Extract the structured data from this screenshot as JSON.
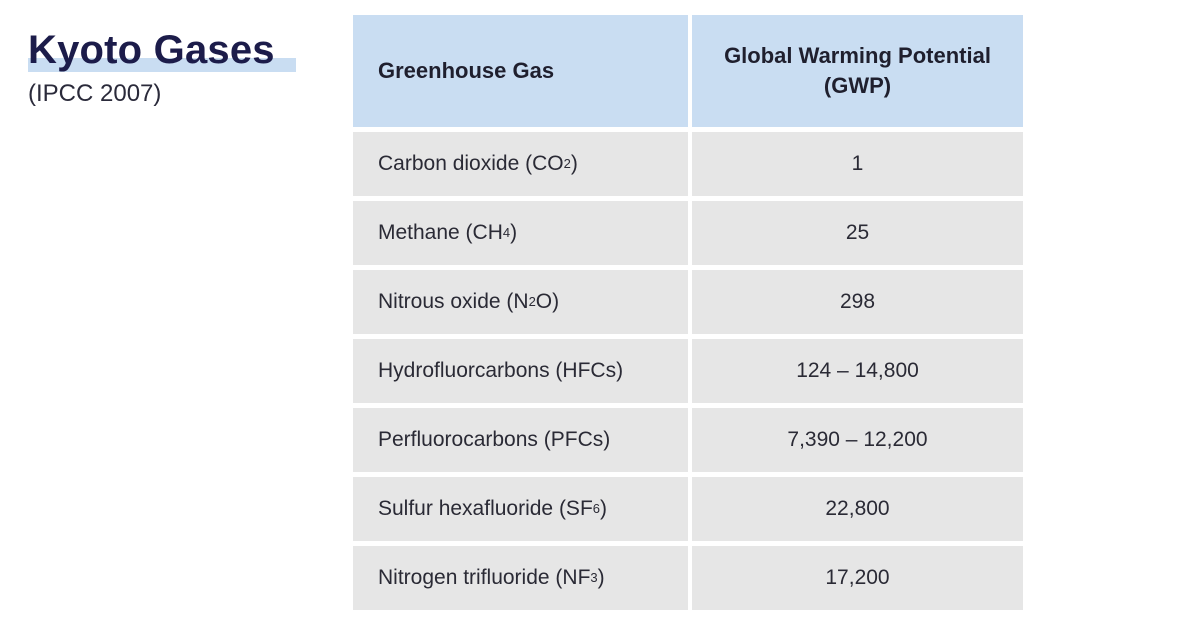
{
  "heading": {
    "title": "Kyoto Gases",
    "subtitle": "(IPCC 2007)",
    "highlight_color": "#c9ddf2"
  },
  "table": {
    "header_color": "#c9ddf2",
    "row_color": "#e6e6e6",
    "columns": [
      "Greenhouse Gas",
      "Global Warming Potential (GWP)"
    ],
    "rows": [
      {
        "gas": "Carbon dioxide (CO",
        "sub": "2",
        "suffix": ")",
        "gwp": "1"
      },
      {
        "gas": "Methane (CH",
        "sub": "4",
        "suffix": ")",
        "gwp": "25"
      },
      {
        "gas": "Nitrous oxide (N",
        "sub": "2",
        "suffix": "O)",
        "gwp": "298"
      },
      {
        "gas": "Hydrofluorcarbons (HFCs)",
        "sub": "",
        "suffix": "",
        "gwp": "124 – 14,800"
      },
      {
        "gas": "Perfluorocarbons (PFCs)",
        "sub": "",
        "suffix": "",
        "gwp": "7,390 – 12,200"
      },
      {
        "gas": "Sulfur hexafluoride (SF",
        "sub": "6",
        "suffix": ")",
        "gwp": "22,800"
      },
      {
        "gas": "Nitrogen trifluoride (NF",
        "sub": "3",
        "suffix": ")",
        "gwp": "17,200"
      }
    ]
  }
}
